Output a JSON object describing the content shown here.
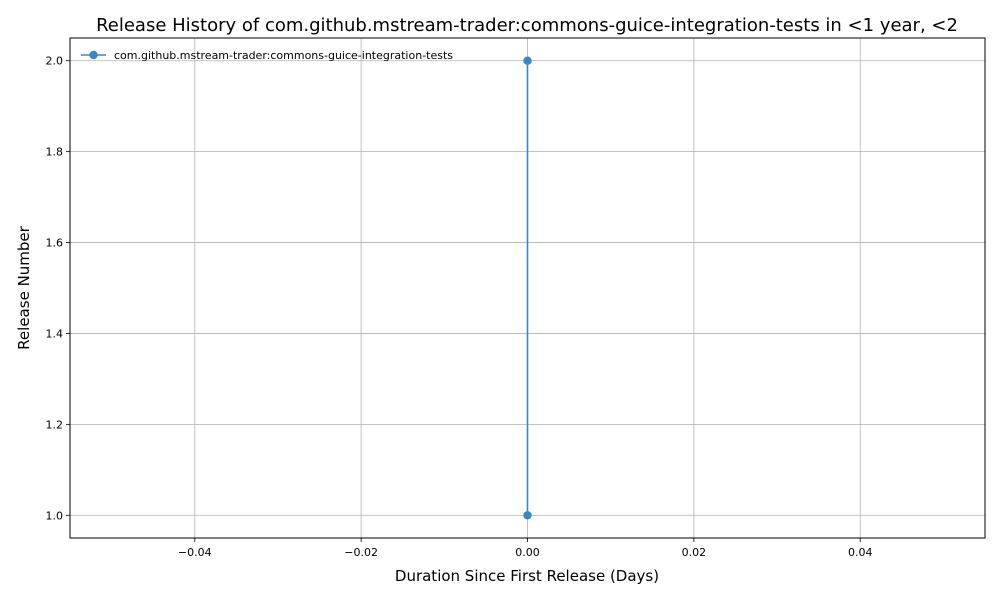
{
  "chart_data": {
    "type": "line",
    "title": "Release History of com.github.mstream-trader:commons-guice-integration-tests in <1 year, <2",
    "xlabel": "Duration Since First Release (Days)",
    "ylabel": "Release Number",
    "xlim": [
      -0.055,
      0.055
    ],
    "ylim": [
      0.95,
      2.05
    ],
    "xticks": [
      -0.04,
      -0.02,
      0.0,
      0.02,
      0.04
    ],
    "xtick_labels": [
      "−0.04",
      "−0.02",
      "0.00",
      "0.02",
      "0.04"
    ],
    "yticks": [
      1.0,
      1.2,
      1.4,
      1.6,
      1.8,
      2.0
    ],
    "ytick_labels": [
      "1.0",
      "1.2",
      "1.4",
      "1.6",
      "1.8",
      "2.0"
    ],
    "grid": true,
    "legend_position": "top-left",
    "series": [
      {
        "name": "com.github.mstream-trader:commons-guice-integration-tests",
        "color": "#3a87c0",
        "marker": "circle",
        "points": [
          {
            "x": 0.0,
            "y": 1
          },
          {
            "x": 0.0,
            "y": 2
          }
        ]
      }
    ]
  }
}
